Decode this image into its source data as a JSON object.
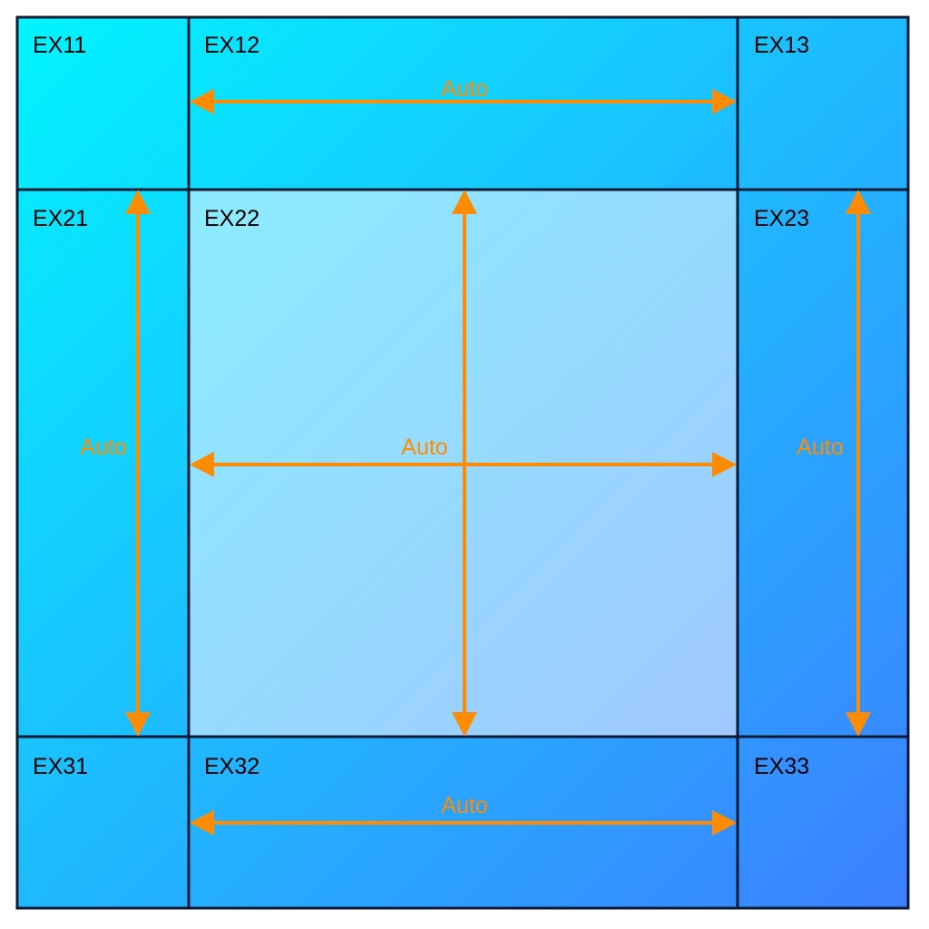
{
  "colors": {
    "border": "#0d1a33",
    "arrow": "#ff8c00",
    "label": "#000000",
    "gradient_start": "#00f4ff",
    "gradient_end": "#3d7fff",
    "center_light_start": "#8cecff",
    "center_light_end": "#a0c8ff"
  },
  "cells": {
    "ex11": "EX11",
    "ex12": "EX12",
    "ex13": "EX13",
    "ex21": "EX21",
    "ex22": "EX22",
    "ex23": "EX23",
    "ex31": "EX31",
    "ex32": "EX32",
    "ex33": "EX33"
  },
  "sizing": {
    "top_row_width": "Auto",
    "middle_row_width": "Auto",
    "bottom_row_width": "Auto",
    "left_column_height": "Auto",
    "middle_column_height": "Auto",
    "right_column_height": "Auto"
  }
}
